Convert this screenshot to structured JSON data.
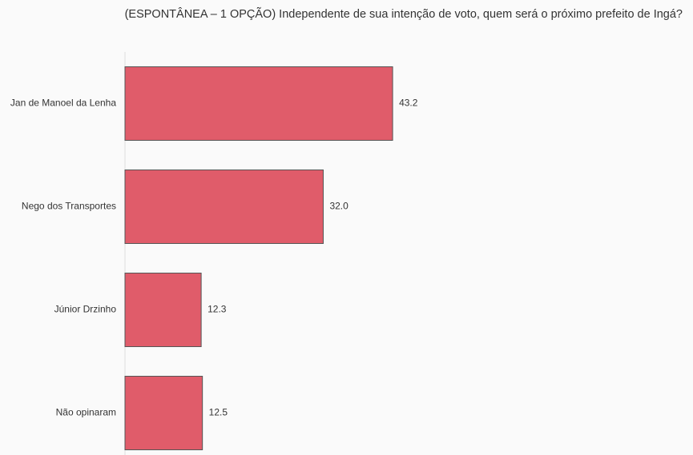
{
  "chart_data": {
    "type": "bar",
    "orientation": "horizontal",
    "title": "(ESPONTÂNEA – 1 OPÇÃO) Independente de sua intenção de voto, quem será o próximo prefeito de Ingá?",
    "categories": [
      "Jan de Manoel da Lenha",
      "Nego dos Transportes",
      "Júnior Drzinho",
      "Não opinaram"
    ],
    "values": [
      43.2,
      32.0,
      12.3,
      12.5
    ],
    "value_labels": [
      "43.2",
      "32.0",
      "12.3",
      "12.5"
    ],
    "color": "#e05c6a",
    "xlim": [
      0,
      90
    ]
  }
}
